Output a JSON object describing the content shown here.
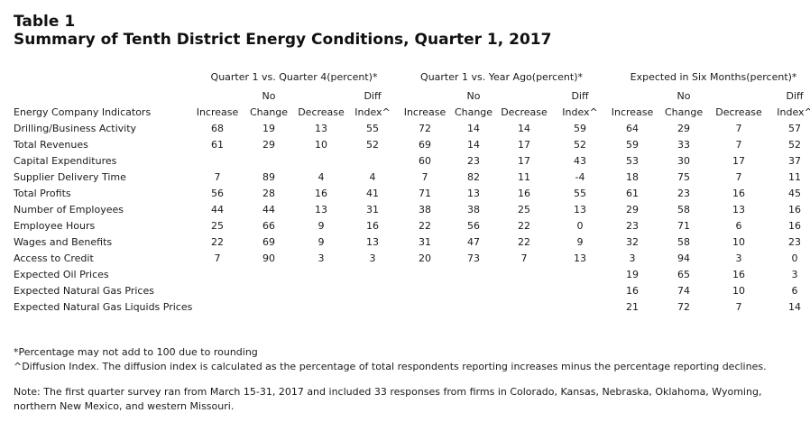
{
  "title": "Table 1",
  "subtitle": "Summary of Tenth District Energy Conditions, Quarter 1, 2017",
  "table": {
    "groups": [
      "Quarter 1 vs. Quarter 4(percent)*",
      "Quarter 1 vs. Year Ago(percent)*",
      "Expected in Six Months(percent)*"
    ],
    "sub_top": [
      "",
      "No",
      "",
      "Diff"
    ],
    "sub_bottom": [
      "Increase",
      "Change",
      "Decrease",
      "Index^"
    ],
    "row_header": "Energy Company Indicators",
    "rows": [
      {
        "label": "Drilling/Business Activity",
        "cells": [
          "68",
          "19",
          "13",
          "55",
          "72",
          "14",
          "14",
          "59",
          "64",
          "29",
          "7",
          "57"
        ]
      },
      {
        "label": "Total Revenues",
        "cells": [
          "61",
          "29",
          "10",
          "52",
          "69",
          "14",
          "17",
          "52",
          "59",
          "33",
          "7",
          "52"
        ]
      },
      {
        "label": "Capital Expenditures",
        "cells": [
          "",
          "",
          "",
          "",
          "60",
          "23",
          "17",
          "43",
          "53",
          "30",
          "17",
          "37"
        ]
      },
      {
        "label": "Supplier Delivery Time",
        "cells": [
          "7",
          "89",
          "4",
          "4",
          "7",
          "82",
          "11",
          "-4",
          "18",
          "75",
          "7",
          "11"
        ]
      },
      {
        "label": "Total Profits",
        "cells": [
          "56",
          "28",
          "16",
          "41",
          "71",
          "13",
          "16",
          "55",
          "61",
          "23",
          "16",
          "45"
        ]
      },
      {
        "label": "Number of Employees",
        "cells": [
          "44",
          "44",
          "13",
          "31",
          "38",
          "38",
          "25",
          "13",
          "29",
          "58",
          "13",
          "16"
        ]
      },
      {
        "label": "Employee Hours",
        "cells": [
          "25",
          "66",
          "9",
          "16",
          "22",
          "56",
          "22",
          "0",
          "23",
          "71",
          "6",
          "16"
        ]
      },
      {
        "label": "Wages and Benefits",
        "cells": [
          "22",
          "69",
          "9",
          "13",
          "31",
          "47",
          "22",
          "9",
          "32",
          "58",
          "10",
          "23"
        ]
      },
      {
        "label": "Access to Credit",
        "cells": [
          "7",
          "90",
          "3",
          "3",
          "20",
          "73",
          "7",
          "13",
          "3",
          "94",
          "3",
          "0"
        ]
      },
      {
        "label": "Expected Oil Prices",
        "cells": [
          "",
          "",
          "",
          "",
          "",
          "",
          "",
          "",
          "19",
          "65",
          "16",
          "3"
        ]
      },
      {
        "label": "Expected Natural Gas Prices",
        "cells": [
          "",
          "",
          "",
          "",
          "",
          "",
          "",
          "",
          "16",
          "74",
          "10",
          "6"
        ]
      },
      {
        "label": "Expected Natural Gas Liquids Prices",
        "cells": [
          "",
          "",
          "",
          "",
          "",
          "",
          "",
          "",
          "21",
          "72",
          "7",
          "14"
        ]
      }
    ]
  },
  "footnotes": {
    "percentage": "*Percentage may not add to 100 due to rounding",
    "diffusion": "^Diffusion Index. The diffusion index is calculated as the percentage of total respondents reporting increases minus the percentage reporting declines.",
    "note_line1": "Note: The first quarter survey ran from March 15-31, 2017 and included 33 responses from firms in Colorado, Kansas, Nebraska, Oklahoma, Wyoming,",
    "note_line2": "northern New Mexico, and western Missouri."
  }
}
